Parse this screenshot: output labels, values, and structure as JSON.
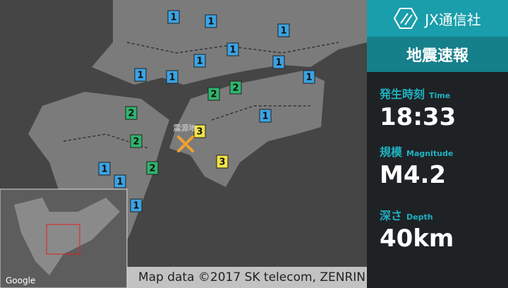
{
  "brand": "JX通信社",
  "banner": "地震速報",
  "time": {
    "label": "発生時刻",
    "label_en": "Time",
    "value": "18:33"
  },
  "magnitude": {
    "label": "規模",
    "label_en": "Magnitude",
    "value": "M4.2"
  },
  "depth": {
    "label": "深さ",
    "label_en": "Depth",
    "value": "40km"
  },
  "map": {
    "epicenter_label": "震源地",
    "logo": "Google",
    "attribution": "Map data ©2017 SK telecom, ZENRIN",
    "markers": [
      "1",
      "1",
      "1",
      "1",
      "1",
      "1",
      "1",
      "1",
      "1",
      "2",
      "2",
      "2",
      "1",
      "3",
      "2",
      "3",
      "1",
      "2",
      "1",
      "1"
    ]
  }
}
